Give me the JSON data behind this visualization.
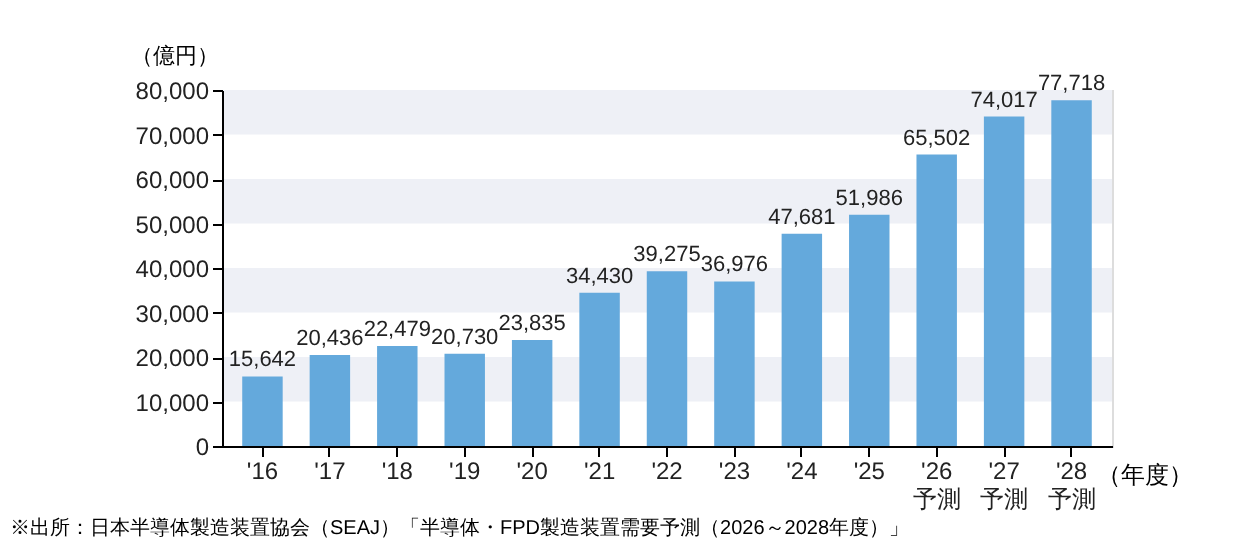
{
  "chart_data": {
    "type": "bar",
    "categories": [
      "'16",
      "'17",
      "'18",
      "'19",
      "'20",
      "'21",
      "'22",
      "'23",
      "'24",
      "'25",
      "'26\n予測",
      "'27\n予測",
      "'28\n予測"
    ],
    "values": [
      15642,
      20436,
      22479,
      20730,
      23835,
      34430,
      39275,
      36976,
      47681,
      51986,
      65502,
      74017,
      77718
    ],
    "value_labels": [
      "15,642",
      "20,436",
      "22,479",
      "20,730",
      "23,835",
      "34,430",
      "39,275",
      "36,976",
      "47,681",
      "51,986",
      "65,502",
      "74,017",
      "77,718"
    ],
    "color": "#64a9dc",
    "ylabel": "（億円）",
    "xlabel": "（年度）",
    "ylim": [
      0,
      80000
    ],
    "yticks": [
      0,
      {
        "value": 10000,
        "label": "10,000"
      },
      {
        "value": 20000,
        "label": "20,000"
      },
      {
        "value": 30000,
        "label": "30,000"
      },
      {
        "value": 40000,
        "label": "40,000"
      },
      {
        "value": 50000,
        "label": "50,000"
      },
      {
        "value": 60000,
        "label": "60,000"
      },
      {
        "value": 70000,
        "label": "70,000"
      },
      {
        "value": 80000,
        "label": "80,000"
      }
    ],
    "bands": [
      {
        "axis": "y",
        "from": 10000,
        "to": 20000,
        "color": "#eef0f6"
      },
      {
        "axis": "y",
        "from": 30000,
        "to": 40000,
        "color": "#eef0f6"
      },
      {
        "axis": "y",
        "from": 50000,
        "to": 60000,
        "color": "#eef0f6"
      },
      {
        "axis": "y",
        "from": 70000,
        "to": 80000,
        "color": "#eef0f6"
      }
    ],
    "annotations": [
      "※出所：日本半導体製造装置協会（SEAJ）「半導体・FPD製造装置需要予測（2026～2028年度）」"
    ]
  }
}
